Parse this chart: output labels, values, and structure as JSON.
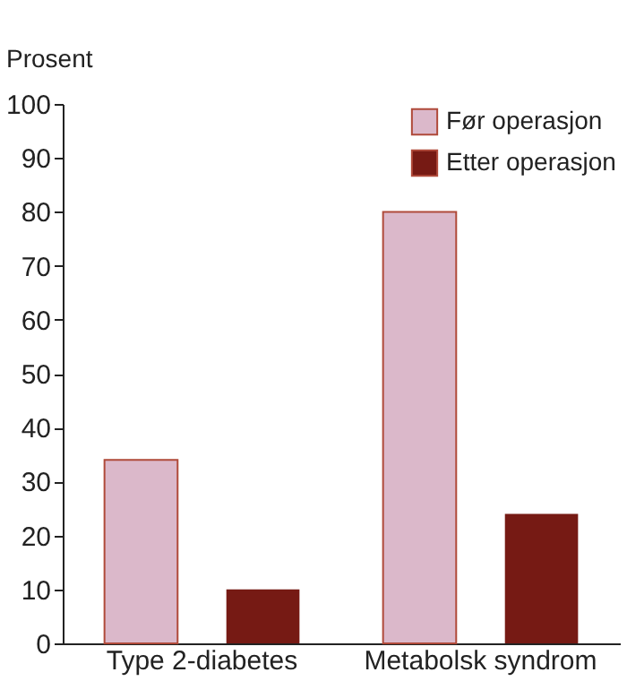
{
  "chart_data": {
    "type": "bar",
    "ylabel": "Prosent",
    "categories": [
      "Type 2-diabetes",
      "Metabolsk syndrom"
    ],
    "series": [
      {
        "name": "Før operasjon",
        "color": "#dbb8ca",
        "values": [
          34,
          80
        ]
      },
      {
        "name": "Etter operasjon",
        "color": "#761a14",
        "values": [
          10,
          24
        ]
      }
    ],
    "ylim": [
      0,
      100
    ],
    "yticks": [
      0,
      10,
      20,
      30,
      40,
      50,
      60,
      70,
      80,
      90,
      100
    ],
    "grid": false,
    "legend": "top right"
  }
}
